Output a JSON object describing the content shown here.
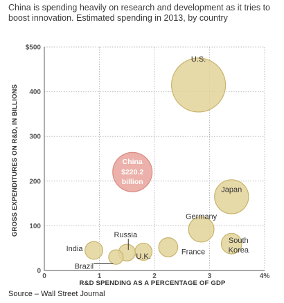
{
  "subtitle": "China is spending heavily on research and development as it tries to boost innovation. Estimated spending in 2013, by country",
  "source": "Source – Wall Street Journal",
  "colors": {
    "bubble_fill": "#e3d39a",
    "bubble_stroke": "#c8b46c",
    "highlight_fill": "#e8a39b",
    "highlight_stroke": "#d98b82",
    "grid": "#bbbbbb",
    "axis": "#777777"
  },
  "chart_data": {
    "type": "scatter",
    "xlabel": "R&D SPENDING AS A PERCENTAGE OF GDP",
    "ylabel": "GROSS EXPENDITURES ON R&D, IN BILLIONS",
    "xlim": [
      0,
      4
    ],
    "ylim": [
      0,
      500
    ],
    "x_ticks": [
      "0",
      "1",
      "2",
      "3",
      "4%"
    ],
    "y_ticks": [
      "0",
      "100",
      "200",
      "300",
      "400",
      "$500"
    ],
    "grid": true,
    "points": [
      {
        "name": "U.S.",
        "x": 2.8,
        "y": 415
      },
      {
        "name": "China",
        "x": 1.6,
        "y": 220.2,
        "annotation": [
          "$220.2",
          "billion"
        ],
        "highlight": true
      },
      {
        "name": "Japan",
        "x": 3.4,
        "y": 165
      },
      {
        "name": "Germany",
        "x": 2.85,
        "y": 92
      },
      {
        "name": "South Korea",
        "x": 3.4,
        "y": 60
      },
      {
        "name": "France",
        "x": 2.25,
        "y": 52
      },
      {
        "name": "U.K.",
        "x": 1.8,
        "y": 42
      },
      {
        "name": "Russia",
        "x": 1.5,
        "y": 40
      },
      {
        "name": "India",
        "x": 0.9,
        "y": 45
      },
      {
        "name": "Brazil",
        "x": 1.3,
        "y": 30
      }
    ]
  }
}
